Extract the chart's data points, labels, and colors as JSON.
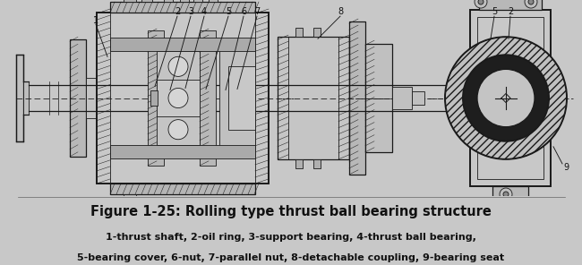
{
  "title": "Figure 1-25: Rolling type thrust ball bearing structure",
  "subtitle_line1": "1-thrust shaft, 2-oil ring, 3-support bearing, 4-thrust ball bearing,",
  "subtitle_line2": "5-bearing cover, 6-nut, 7-parallel nut, 8-detachable coupling, 9-bearing seat",
  "bg_color": "#c8c8c8",
  "title_fontsize": 10.5,
  "subtitle_fontsize": 8.0,
  "title_fontweight": "bold",
  "subtitle_fontweight": "bold",
  "fig_width": 6.5,
  "fig_height": 2.96,
  "dpi": 100
}
